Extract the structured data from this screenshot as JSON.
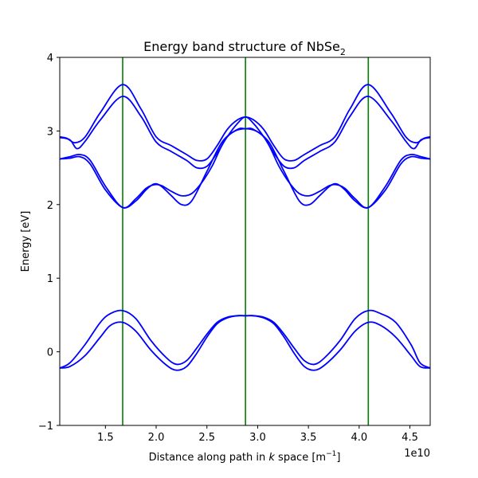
{
  "chart_data": {
    "type": "line",
    "title": "Energy band structure of NbSe",
    "title_subscript": "2",
    "xlabel_prefix": "Distance along path in ",
    "xlabel_k": "k",
    "xlabel_suffix": " space [m",
    "xlabel_sup": "−1",
    "xlabel_end": "]",
    "ylabel": "Energy [eV]",
    "x_offset_text": "1e10",
    "xlim": [
      1.05,
      4.7
    ],
    "ylim": [
      -1,
      4
    ],
    "xticks": [
      1.5,
      2.0,
      2.5,
      3.0,
      3.5,
      4.0,
      4.5
    ],
    "xtick_labels": [
      "1.5",
      "2.0",
      "2.5",
      "3.0",
      "3.5",
      "4.0",
      "4.5"
    ],
    "yticks": [
      -1,
      0,
      1,
      2,
      3,
      4
    ],
    "ytick_labels": [
      "−1",
      "0",
      "1",
      "2",
      "3",
      "4"
    ],
    "vlines": [
      1.67,
      2.88,
      4.09
    ],
    "vline_color": "#008000",
    "band_color": "#0000ff",
    "grid": false,
    "series": [
      {
        "x": [
          1.05,
          1.15,
          1.3,
          1.45,
          1.55,
          1.67,
          1.8,
          1.95,
          2.1,
          2.2,
          2.3,
          2.4,
          2.5,
          2.6,
          2.7,
          2.8,
          2.88,
          2.96,
          3.06,
          3.16,
          3.26,
          3.36,
          3.46,
          3.56,
          3.66,
          3.81,
          3.96,
          4.09,
          4.21,
          4.36,
          4.51,
          4.6,
          4.7
        ],
        "y": [
          -0.22,
          -0.2,
          -0.05,
          0.2,
          0.36,
          0.4,
          0.28,
          0.02,
          -0.18,
          -0.25,
          -0.2,
          -0.02,
          0.2,
          0.38,
          0.46,
          0.49,
          0.49,
          0.49,
          0.46,
          0.38,
          0.2,
          -0.02,
          -0.2,
          -0.25,
          -0.18,
          0.02,
          0.28,
          0.4,
          0.36,
          0.2,
          -0.05,
          -0.2,
          -0.22
        ]
      },
      {
        "x": [
          1.05,
          1.15,
          1.3,
          1.45,
          1.55,
          1.67,
          1.8,
          1.95,
          2.1,
          2.2,
          2.3,
          2.4,
          2.5,
          2.6,
          2.7,
          2.8,
          2.88,
          2.96,
          3.06,
          3.16,
          3.26,
          3.36,
          3.46,
          3.56,
          3.66,
          3.81,
          3.96,
          4.09,
          4.21,
          4.36,
          4.51,
          4.6,
          4.7
        ],
        "y": [
          -0.22,
          -0.15,
          0.1,
          0.4,
          0.52,
          0.56,
          0.45,
          0.15,
          -0.08,
          -0.17,
          -0.12,
          0.05,
          0.24,
          0.4,
          0.47,
          0.49,
          0.49,
          0.49,
          0.47,
          0.4,
          0.24,
          0.05,
          -0.12,
          -0.17,
          -0.08,
          0.15,
          0.45,
          0.56,
          0.52,
          0.4,
          0.1,
          -0.15,
          -0.22
        ]
      },
      {
        "x": [
          1.05,
          1.15,
          1.25,
          1.35,
          1.5,
          1.67,
          1.8,
          1.9,
          1.98,
          2.05,
          2.15,
          2.25,
          2.35,
          2.5,
          2.65,
          2.8,
          2.88,
          2.96,
          3.11,
          3.26,
          3.41,
          3.51,
          3.61,
          3.71,
          3.78,
          3.86,
          3.96,
          4.09,
          4.26,
          4.41,
          4.51,
          4.61,
          4.7
        ],
        "y": [
          2.62,
          2.63,
          2.65,
          2.55,
          2.2,
          1.96,
          2.05,
          2.2,
          2.28,
          2.25,
          2.12,
          2.0,
          2.05,
          2.45,
          2.85,
          3.02,
          3.03,
          3.02,
          2.85,
          2.45,
          2.05,
          2.0,
          2.12,
          2.25,
          2.28,
          2.2,
          2.05,
          1.96,
          2.2,
          2.55,
          2.65,
          2.63,
          2.62
        ]
      },
      {
        "x": [
          1.05,
          1.15,
          1.25,
          1.35,
          1.5,
          1.67,
          1.8,
          1.9,
          1.98,
          2.05,
          2.15,
          2.25,
          2.35,
          2.45,
          2.55,
          2.7,
          2.88,
          3.06,
          3.21,
          3.31,
          3.41,
          3.51,
          3.61,
          3.71,
          3.78,
          3.86,
          3.96,
          4.09,
          4.26,
          4.41,
          4.51,
          4.61,
          4.7
        ],
        "y": [
          2.62,
          2.65,
          2.68,
          2.6,
          2.25,
          1.96,
          2.08,
          2.22,
          2.27,
          2.26,
          2.18,
          2.12,
          2.15,
          2.3,
          2.52,
          2.92,
          3.03,
          2.92,
          2.52,
          2.3,
          2.15,
          2.12,
          2.18,
          2.26,
          2.27,
          2.22,
          2.08,
          1.96,
          2.25,
          2.6,
          2.68,
          2.65,
          2.62
        ]
      },
      {
        "x": [
          1.05,
          1.15,
          1.22,
          1.3,
          1.45,
          1.67,
          1.85,
          2.0,
          2.15,
          2.3,
          2.4,
          2.5,
          2.6,
          2.7,
          2.8,
          2.88,
          2.96,
          3.06,
          3.16,
          3.26,
          3.36,
          3.46,
          3.61,
          3.76,
          3.91,
          4.09,
          4.31,
          4.46,
          4.54,
          4.61,
          4.7
        ],
        "y": [
          2.91,
          2.88,
          2.76,
          2.86,
          3.15,
          3.47,
          3.2,
          2.85,
          2.72,
          2.6,
          2.5,
          2.52,
          2.7,
          2.92,
          3.1,
          3.19,
          3.1,
          2.92,
          2.7,
          2.52,
          2.5,
          2.6,
          2.72,
          2.85,
          3.2,
          3.47,
          3.15,
          2.86,
          2.76,
          2.88,
          2.91
        ]
      },
      {
        "x": [
          1.05,
          1.12,
          1.2,
          1.3,
          1.45,
          1.67,
          1.85,
          2.0,
          2.15,
          2.3,
          2.4,
          2.5,
          2.6,
          2.7,
          2.8,
          2.88,
          2.96,
          3.06,
          3.16,
          3.26,
          3.36,
          3.46,
          3.61,
          3.76,
          3.91,
          4.09,
          4.31,
          4.46,
          4.56,
          4.64,
          4.7
        ],
        "y": [
          2.92,
          2.9,
          2.84,
          2.92,
          3.25,
          3.63,
          3.3,
          2.92,
          2.8,
          2.68,
          2.6,
          2.62,
          2.8,
          3.02,
          3.15,
          3.19,
          3.15,
          3.02,
          2.8,
          2.62,
          2.6,
          2.68,
          2.8,
          2.92,
          3.3,
          3.63,
          3.25,
          2.92,
          2.84,
          2.9,
          2.92
        ]
      }
    ]
  }
}
